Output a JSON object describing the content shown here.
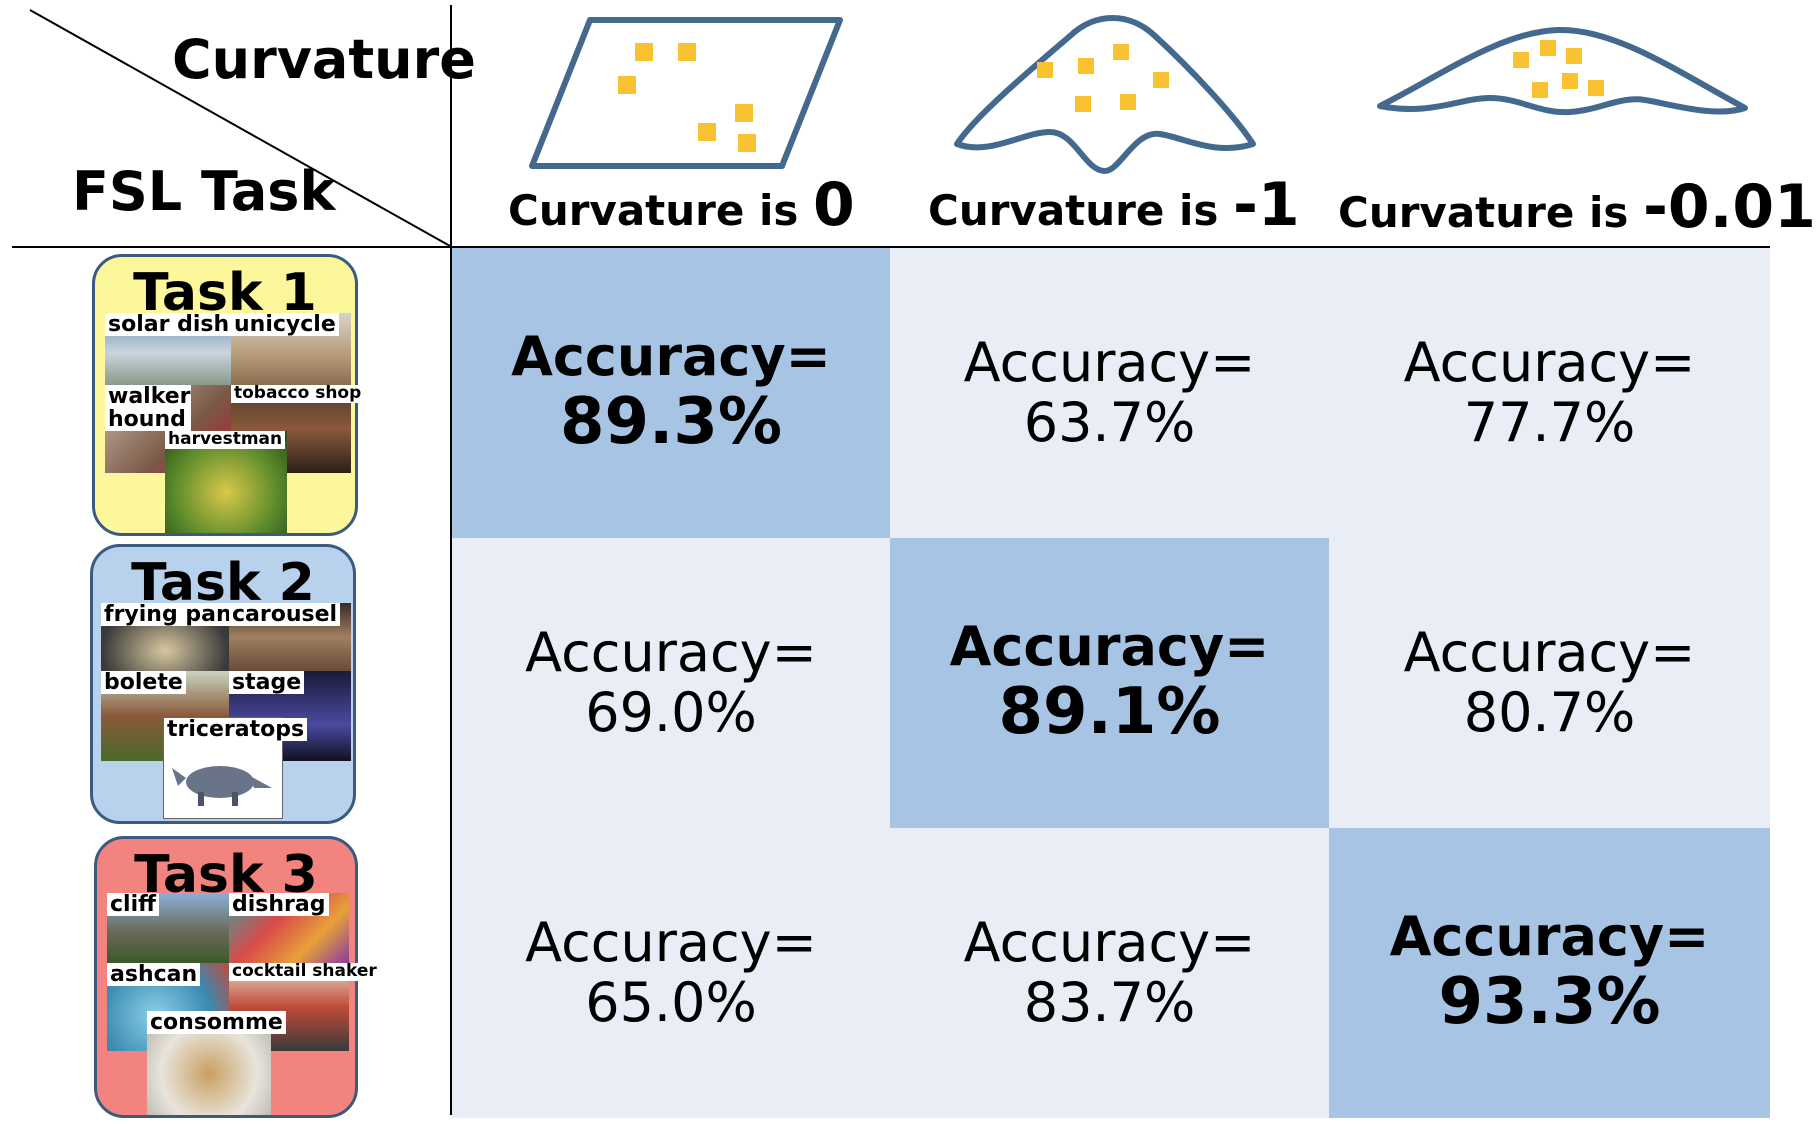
{
  "header": {
    "curvature_label": "Curvature",
    "task_label": "FSL Task"
  },
  "columns": [
    {
      "prefix": "Curvature is",
      "value": "0",
      "surface": "flat-plane-icon"
    },
    {
      "prefix": "Curvature is",
      "value": "-1",
      "surface": "hyperbolic-surface-icon"
    },
    {
      "prefix": "Curvature is",
      "value": "-0.01",
      "surface": "slightly-curved-surface-icon"
    }
  ],
  "tasks": [
    {
      "title": "Task 1",
      "color": "#fdf79b",
      "thumbs": [
        {
          "label": "solar dish"
        },
        {
          "label": "unicycle"
        },
        {
          "label": "walker hound"
        },
        {
          "label": "tobacco shop"
        },
        {
          "label": "harvestman"
        }
      ]
    },
    {
      "title": "Task 2",
      "color": "#b8d1ec",
      "thumbs": [
        {
          "label": "frying pan"
        },
        {
          "label": "carousel"
        },
        {
          "label": "bolete"
        },
        {
          "label": "stage"
        },
        {
          "label": "triceratops"
        }
      ]
    },
    {
      "title": "Task 3",
      "color": "#f2837e",
      "thumbs": [
        {
          "label": "cliff"
        },
        {
          "label": "dishrag"
        },
        {
          "label": "ashcan"
        },
        {
          "label": "cocktail shaker"
        },
        {
          "label": "consomme"
        }
      ]
    }
  ],
  "accuracy_label": "Accuracy=",
  "grid": [
    [
      "89.3%",
      "63.7%",
      "77.7%"
    ],
    [
      "69.0%",
      "89.1%",
      "80.7%"
    ],
    [
      "65.0%",
      "83.7%",
      "93.3%"
    ]
  ],
  "highlight_color": "#a8c4e4",
  "cell_color": "#e9eef6",
  "point_color": "#f9c231"
}
